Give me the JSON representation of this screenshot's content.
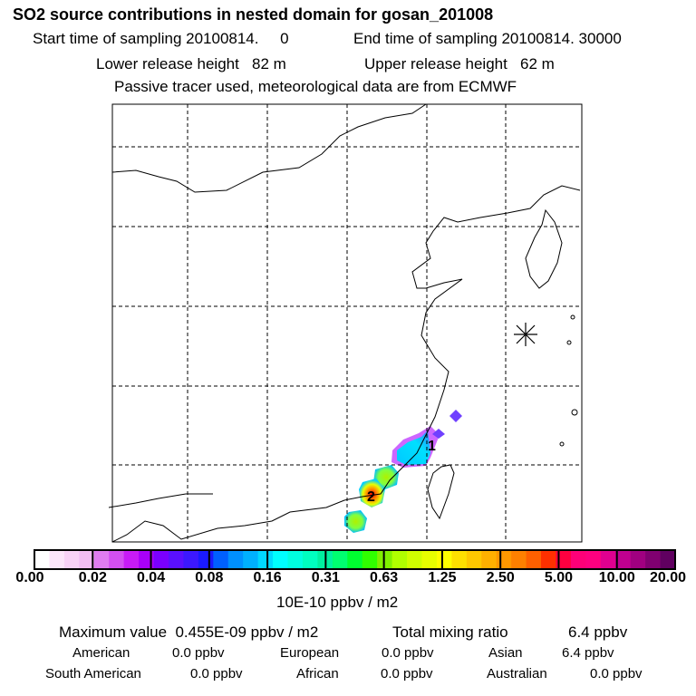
{
  "title": "SO2 source contributions in nested domain for gosan_201008",
  "header": {
    "start_label": "Start time of sampling 20100814.     0",
    "end_label": "End time of sampling 20100814. 30000",
    "lower_label": "Lower release height   82 m",
    "upper_label": "Upper release height   62 m",
    "note": "Passive tracer used, meteorological data are from ECMWF"
  },
  "map": {
    "station_marker": "asterisk-icon",
    "labels": [
      "1",
      "2"
    ]
  },
  "colorbar": {
    "ticks": [
      "0.00",
      "0.02",
      "0.04",
      "0.08",
      "0.16",
      "0.31",
      "0.63",
      "1.25",
      "2.50",
      "5.00",
      "10.00",
      "20.00"
    ],
    "unit": "10E-10 ppbv / m2",
    "colors": [
      "#ffffff",
      "#fce6fa",
      "#f8d2f6",
      "#f2bdf3",
      "#e07cf0",
      "#d34ff0",
      "#c81bf6",
      "#a800f8",
      "#7a00ff",
      "#5a10ff",
      "#3c18ff",
      "#1a1aff",
      "#0060ff",
      "#0090ff",
      "#00b0ff",
      "#00d8ff",
      "#00ffff",
      "#00ffe0",
      "#00ffc0",
      "#00f0a0",
      "#00ff70",
      "#00ff30",
      "#30ff00",
      "#80f000",
      "#b0ff00",
      "#d0ff00",
      "#e8ff00",
      "#ffff00",
      "#ffe000",
      "#ffc800",
      "#ffb000",
      "#ff9800",
      "#ff8000",
      "#ff6000",
      "#ff3000",
      "#ff0040",
      "#ff0078",
      "#ff0080",
      "#e00090",
      "#c00090",
      "#a00080",
      "#800070",
      "#600060"
    ]
  },
  "summary": {
    "max_label": "Maximum value  0.455E-09 ppbv / m2",
    "total_label": "Total mixing ratio",
    "total_value": "6.4 ppbv",
    "regions": [
      {
        "name": "American",
        "value": "0.0 ppbv"
      },
      {
        "name": "European",
        "value": "0.0 ppbv"
      },
      {
        "name": "Asian",
        "value": "6.4 ppbv"
      },
      {
        "name": "South American",
        "value": "0.0 ppbv"
      },
      {
        "name": "African",
        "value": "0.0 ppbv"
      },
      {
        "name": "Australian",
        "value": "0.0 ppbv"
      }
    ]
  }
}
